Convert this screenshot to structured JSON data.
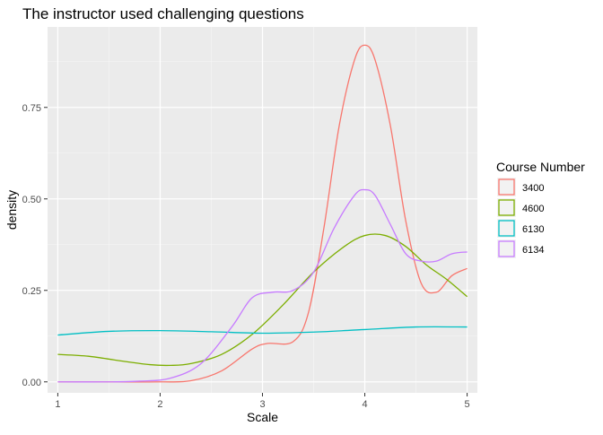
{
  "chart_data": {
    "type": "line",
    "title": "The instructor used challenging questions",
    "xlabel": "Scale",
    "ylabel": "density",
    "xlim": [
      0.9,
      5.1
    ],
    "ylim": [
      -0.03,
      0.97
    ],
    "x_ticks": [
      1,
      2,
      3,
      4,
      5
    ],
    "x_tick_labels": [
      "1",
      "2",
      "3",
      "4",
      "5"
    ],
    "y_ticks": [
      0,
      0.25,
      0.5,
      0.75
    ],
    "y_tick_labels": [
      "0.00",
      "0.25",
      "0.50",
      "0.75"
    ],
    "grid": true,
    "legend": {
      "title": "Course Number",
      "placement": "right"
    },
    "series": [
      {
        "name": "3400",
        "color": "#F8766D",
        "x": [
          1,
          1.5,
          2,
          2.3,
          2.6,
          2.9,
          3.05,
          3.3,
          3.45,
          3.6,
          3.75,
          3.9,
          4,
          4.1,
          4.25,
          4.4,
          4.55,
          4.7,
          4.85,
          5
        ],
        "y": [
          0,
          0,
          0,
          0.003,
          0.03,
          0.09,
          0.105,
          0.11,
          0.19,
          0.42,
          0.7,
          0.88,
          0.92,
          0.88,
          0.7,
          0.44,
          0.27,
          0.245,
          0.29,
          0.31
        ]
      },
      {
        "name": "4600",
        "color": "#7CAE00",
        "x": [
          1,
          1.3,
          1.6,
          1.9,
          2.1,
          2.3,
          2.6,
          2.9,
          3.2,
          3.5,
          3.8,
          4,
          4.2,
          4.4,
          4.6,
          4.8,
          5
        ],
        "y": [
          0.075,
          0.07,
          0.058,
          0.047,
          0.045,
          0.05,
          0.075,
          0.13,
          0.21,
          0.3,
          0.37,
          0.4,
          0.4,
          0.37,
          0.32,
          0.28,
          0.233
        ]
      },
      {
        "name": "6130",
        "color": "#00BFC4",
        "x": [
          1,
          1.5,
          2,
          2.5,
          3,
          3.5,
          4,
          4.5,
          5
        ],
        "y": [
          0.128,
          0.138,
          0.14,
          0.137,
          0.133,
          0.136,
          0.143,
          0.15,
          0.15
        ]
      },
      {
        "name": "6134",
        "color": "#C77CFF",
        "x": [
          1,
          1.5,
          1.8,
          2.1,
          2.4,
          2.7,
          2.9,
          3.1,
          3.3,
          3.5,
          3.7,
          3.9,
          4,
          4.1,
          4.25,
          4.4,
          4.55,
          4.7,
          4.85,
          5
        ],
        "y": [
          0,
          0,
          0.002,
          0.01,
          0.05,
          0.15,
          0.23,
          0.245,
          0.25,
          0.3,
          0.42,
          0.51,
          0.525,
          0.51,
          0.43,
          0.35,
          0.33,
          0.33,
          0.35,
          0.355
        ]
      }
    ]
  }
}
